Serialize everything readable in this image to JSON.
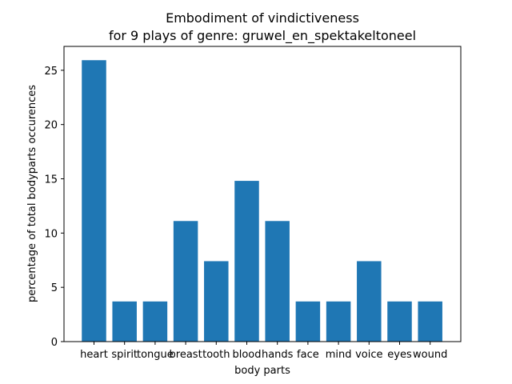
{
  "chart_data": {
    "type": "bar",
    "title": "Embodiment of vindictiveness",
    "subtitle": "for 9 plays of genre: gruwel_en_spektakeltoneel",
    "xlabel": "body parts",
    "ylabel": "percentage of total bodyparts occurences",
    "categories": [
      "heart",
      "spirit",
      "tongue",
      "breast",
      "tooth",
      "blood",
      "hands",
      "face",
      "mind",
      "voice",
      "eyes",
      "wound"
    ],
    "values": [
      25.93,
      3.7,
      3.7,
      11.11,
      7.41,
      14.81,
      11.11,
      3.7,
      3.7,
      7.41,
      3.7,
      3.7
    ],
    "ylim": [
      0,
      27.2
    ],
    "yticks": [
      0,
      5,
      10,
      15,
      20,
      25
    ],
    "bar_color": "#1f77b4",
    "grid": false,
    "legend": false
  }
}
